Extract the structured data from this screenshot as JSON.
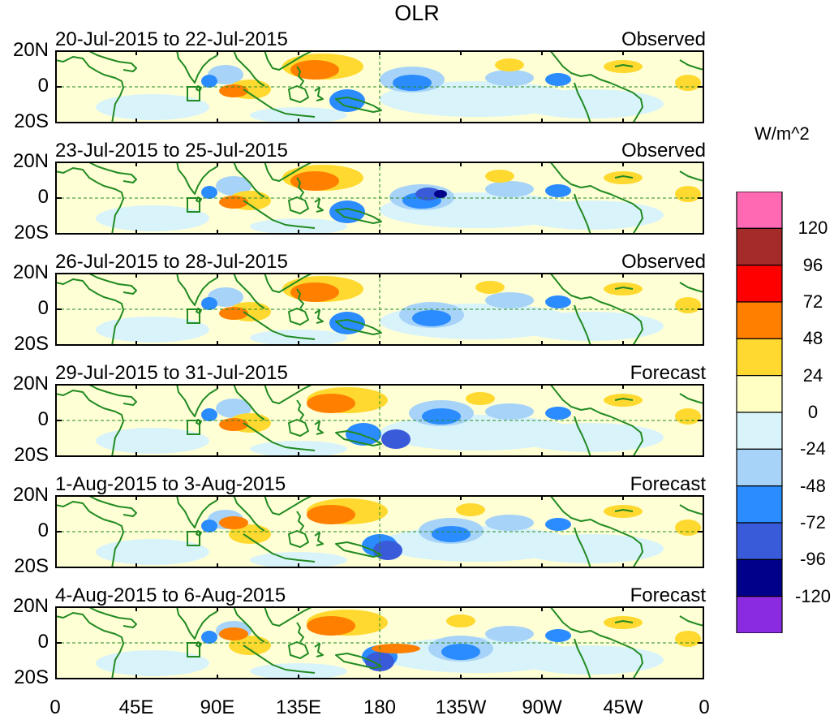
{
  "title": "OLR",
  "units": "W/m^2",
  "panels": [
    {
      "date_range": "20-Jul-2015 to 22-Jul-2015",
      "kind": "Observed"
    },
    {
      "date_range": "23-Jul-2015 to 25-Jul-2015",
      "kind": "Observed"
    },
    {
      "date_range": "26-Jul-2015 to 28-Jul-2015",
      "kind": "Observed"
    },
    {
      "date_range": "29-Jul-2015 to 31-Jul-2015",
      "kind": "Forecast"
    },
    {
      "date_range": "1-Aug-2015 to 3-Aug-2015",
      "kind": "Forecast"
    },
    {
      "date_range": "4-Aug-2015 to 6-Aug-2015",
      "kind": "Forecast"
    }
  ],
  "lat_labels": [
    "20N",
    "0",
    "20S"
  ],
  "lon_labels": [
    "0",
    "45E",
    "90E",
    "135E",
    "180",
    "135W",
    "90W",
    "45W",
    "0"
  ],
  "colorbar": {
    "labels": [
      "120",
      "96",
      "72",
      "48",
      "24",
      "0",
      "-24",
      "-48",
      "-72",
      "-96",
      "-120"
    ],
    "colors": [
      "#ff69b4",
      "#a52a2a",
      "#ff0000",
      "#ff7f00",
      "#ffd92f",
      "#ffffc4",
      "#d9f3fb",
      "#a6d3f7",
      "#2a8cff",
      "#3a5bd9",
      "#00008b",
      "#8a2be2"
    ]
  },
  "colors": {
    "coast": "#228b22",
    "ocean_base": "#ffffd6",
    "neg_light": "#d9f3fb",
    "neg_mid": "#a6d3f7",
    "neg_strong": "#2a8cff",
    "neg_deep": "#3a5bd9",
    "neg_extreme": "#00008b",
    "pos_light": "#ffd92f",
    "pos_strong": "#ff7f00"
  }
}
